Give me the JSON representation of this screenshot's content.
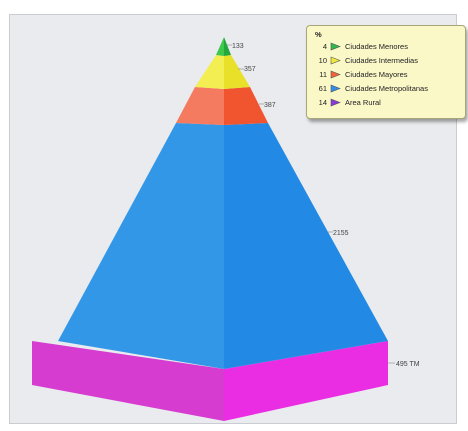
{
  "chart_data": {
    "type": "pyramid",
    "legend_title": "%",
    "legend_position": "top-right",
    "levels": [
      {
        "name": "Ciudades Menores",
        "percent": "4",
        "value_label": "133",
        "color": "#2fb84a"
      },
      {
        "name": "Ciudades Intermedias",
        "percent": "10",
        "value_label": "357",
        "color": "#f2ea3a"
      },
      {
        "name": "Ciudades Mayores",
        "percent": "11",
        "value_label": "387",
        "color": "#f2633a"
      },
      {
        "name": "Ciudades Metropolitanas",
        "percent": "61",
        "value_label": "2155",
        "color": "#2f8fe8"
      },
      {
        "name": "Area Rural",
        "percent": "14",
        "value_label": "495 TM",
        "color": "#e83adf"
      }
    ]
  }
}
